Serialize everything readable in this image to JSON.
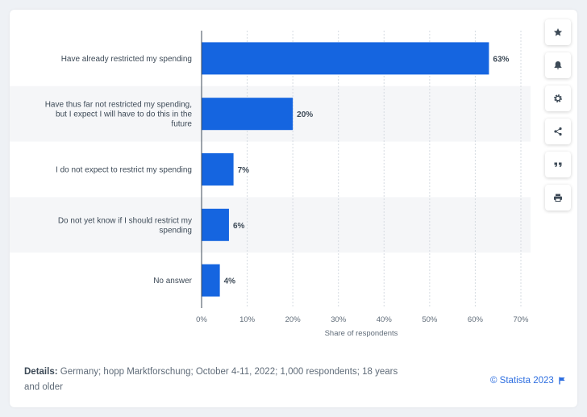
{
  "chart_data": {
    "type": "bar",
    "orientation": "horizontal",
    "categories": [
      [
        "Have already restricted my spending"
      ],
      [
        "Have thus far not restricted my spending,",
        "but I expect I will have to do this in the",
        "future"
      ],
      [
        "I do not expect to restrict my spending"
      ],
      [
        "Do not yet know if I should restrict my",
        "spending"
      ],
      [
        "No answer"
      ]
    ],
    "values": [
      63,
      20,
      7,
      6,
      4
    ],
    "value_suffix": "%",
    "xlabel": "Share of respondents",
    "xlim": [
      0,
      70
    ],
    "xticks": [
      "0%",
      "10%",
      "20%",
      "30%",
      "40%",
      "50%",
      "60%",
      "70%"
    ],
    "bar_color": "#1565e0",
    "grid": true
  },
  "details": {
    "label": "Details:",
    "text": "Germany; hopp Marktforschung; October 4-11, 2022; 1,000 respondents; 18 years and older"
  },
  "copyright": "© Statista 2023",
  "toolbar": [
    {
      "icon": "star-icon"
    },
    {
      "icon": "bell-icon"
    },
    {
      "icon": "gear-icon"
    },
    {
      "icon": "share-icon"
    },
    {
      "icon": "quote-icon"
    },
    {
      "icon": "print-icon"
    }
  ],
  "colors": {
    "accent": "#2d6ee0",
    "bar": "#1565e0",
    "band": "#f5f6f8"
  }
}
